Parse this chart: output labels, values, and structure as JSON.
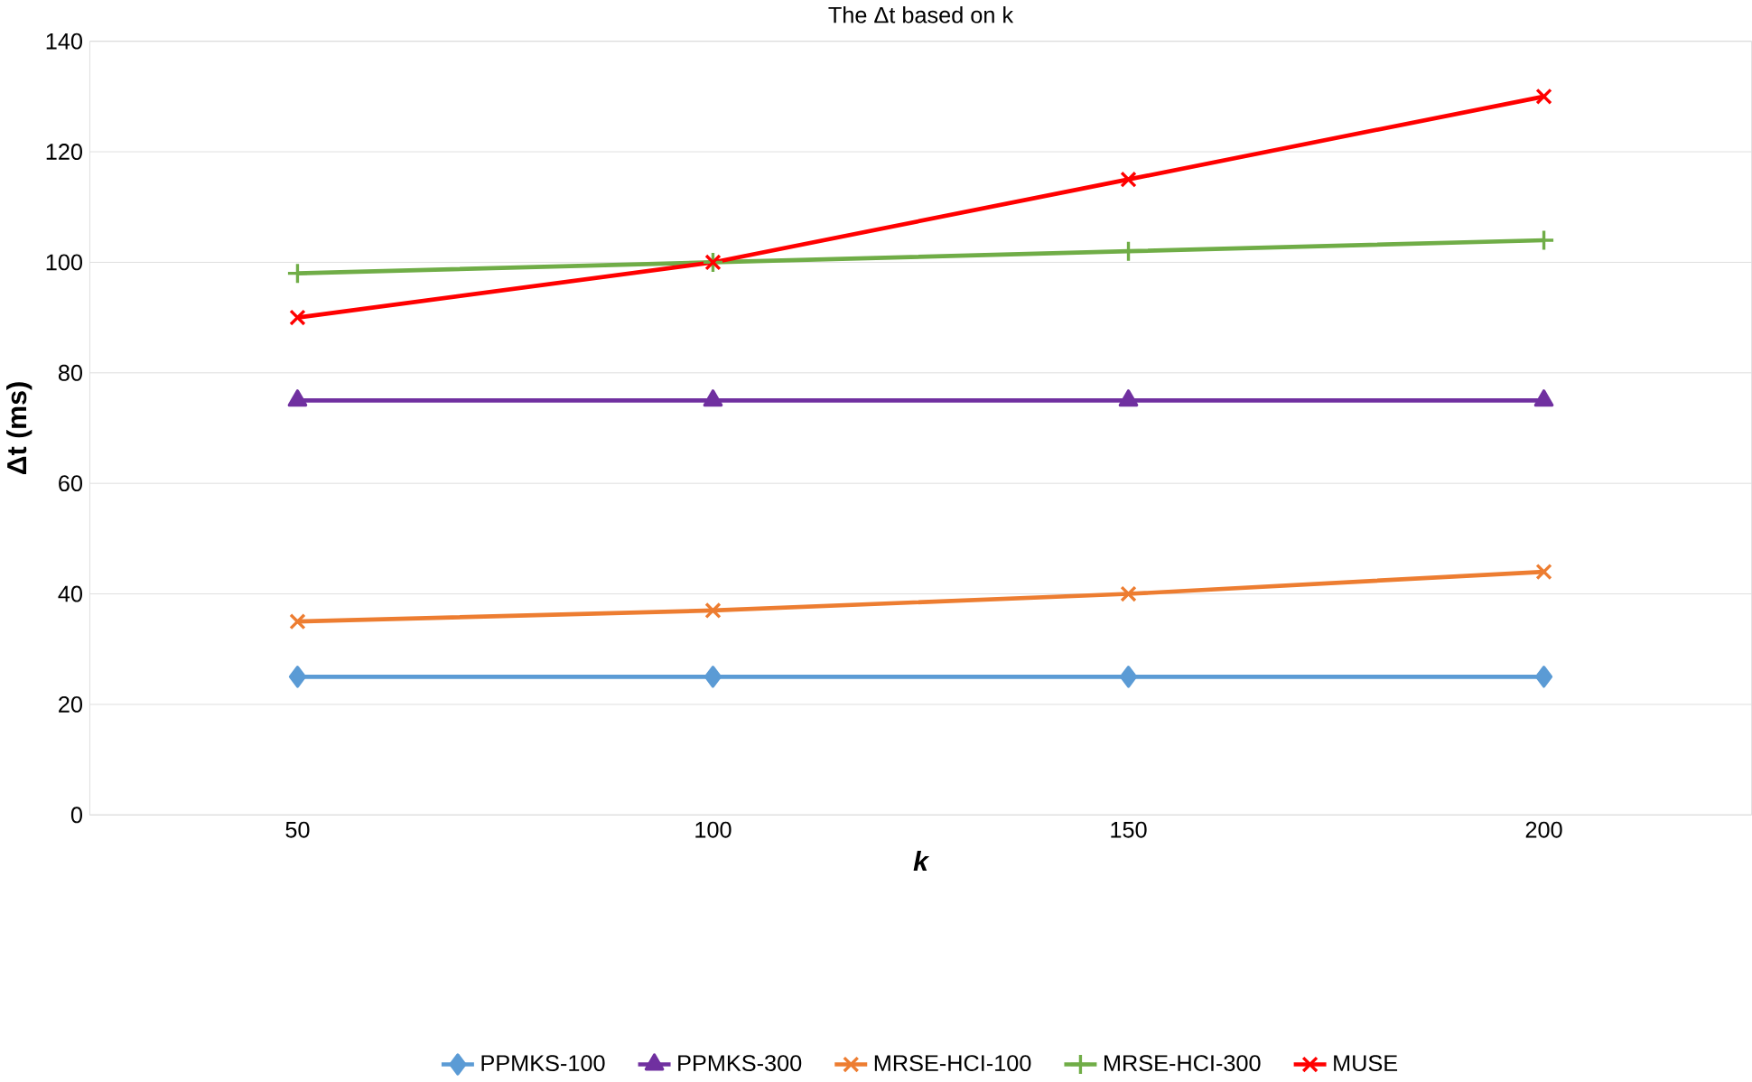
{
  "chart_data": {
    "type": "line",
    "title": "The Δt based on k",
    "xlabel": "k",
    "ylabel": "Δt (ms)",
    "categories": [
      "50",
      "100",
      "150",
      "200"
    ],
    "ylim": [
      0,
      140
    ],
    "yticks": [
      0,
      20,
      40,
      60,
      80,
      100,
      120,
      140
    ],
    "grid": "y",
    "legend": "bottom",
    "series": [
      {
        "name": "PPMKS-100",
        "color": "#5b9bd5",
        "marker": "diamond",
        "values": [
          25,
          25,
          25,
          25
        ]
      },
      {
        "name": "PPMKS-300",
        "color": "#7030a0",
        "marker": "triangle",
        "values": [
          75,
          75,
          75,
          75
        ]
      },
      {
        "name": "MRSE-HCI-100",
        "color": "#ed7d31",
        "marker": "cross",
        "values": [
          35,
          37,
          40,
          44
        ]
      },
      {
        "name": "MRSE-HCI-300",
        "color": "#70ad47",
        "marker": "plus",
        "values": [
          98,
          100,
          102,
          104
        ]
      },
      {
        "name": "MUSE",
        "color": "#ff0000",
        "marker": "cross",
        "values": [
          90,
          100,
          115,
          130
        ]
      }
    ]
  }
}
